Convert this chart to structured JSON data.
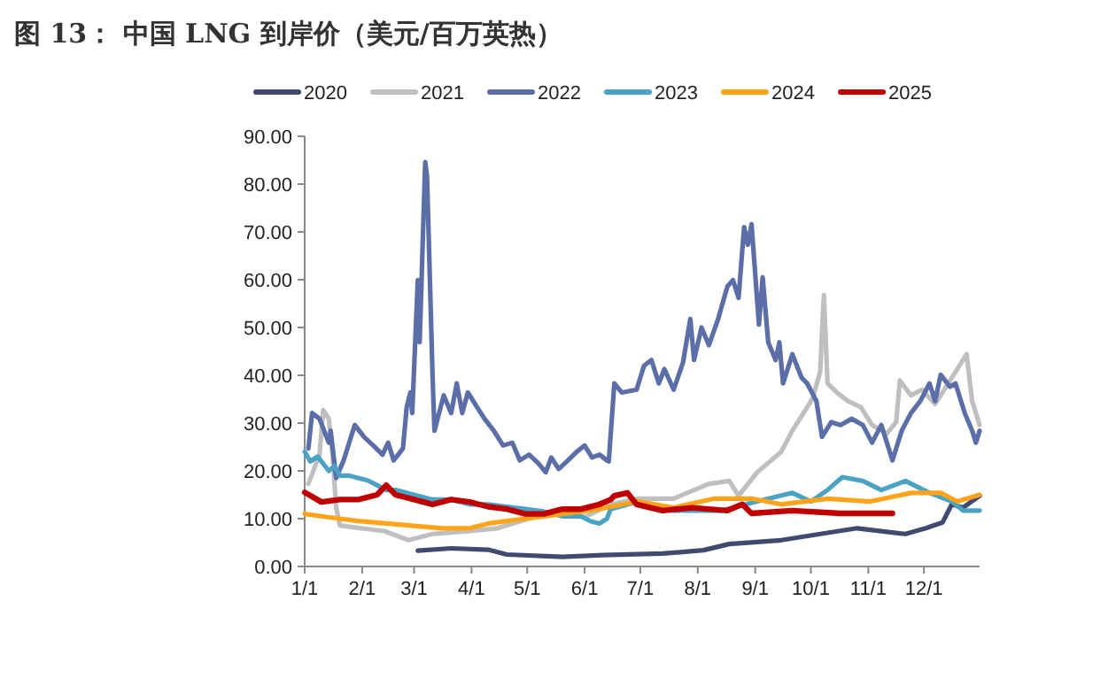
{
  "chart_data": {
    "type": "line",
    "title": "图 13： 中国 LNG 到岸价（美元/百万英热）",
    "legend": "top",
    "xlim": [
      "--01-01",
      "--12-31"
    ],
    "xticks": [
      {
        "value": "--01-01",
        "label": "1/1"
      },
      {
        "value": "--02-01",
        "label": "2/1"
      },
      {
        "value": "--03-01",
        "label": "3/1"
      },
      {
        "value": "--04-01",
        "label": "4/1"
      },
      {
        "value": "--05-01",
        "label": "5/1"
      },
      {
        "value": "--06-01",
        "label": "6/1"
      },
      {
        "value": "--07-01",
        "label": "7/1"
      },
      {
        "value": "--08-01",
        "label": "8/1"
      },
      {
        "value": "--09-01",
        "label": "9/1"
      },
      {
        "value": "--10-01",
        "label": "10/1"
      },
      {
        "value": "--11-01",
        "label": "11/1"
      },
      {
        "value": "--12-01",
        "label": "12/1"
      }
    ],
    "ylim": [
      0,
      90
    ],
    "yticks": [
      {
        "value": 0,
        "label": "0.00"
      },
      {
        "value": 10,
        "label": "10.00"
      },
      {
        "value": 20,
        "label": "20.00"
      },
      {
        "value": 30,
        "label": "30.00"
      },
      {
        "value": 40,
        "label": "40.00"
      },
      {
        "value": 50,
        "label": "50.00"
      },
      {
        "value": 60,
        "label": "60.00"
      },
      {
        "value": 70,
        "label": "70.00"
      },
      {
        "value": 80,
        "label": "80.00"
      },
      {
        "value": 90,
        "label": "90.00"
      }
    ],
    "series": [
      {
        "name": "2020",
        "color": "#3f4a70",
        "x": [
          "--03-03",
          "--03-21",
          "--04-10",
          "--04-20",
          "--05-20",
          "--06-11",
          "--07-13",
          "--08-04",
          "--08-18",
          "--09-15",
          "--10-16",
          "--10-26",
          "--11-21",
          "--12-02",
          "--12-11",
          "--12-16",
          "--12-22",
          "--12-31"
        ],
        "values": [
          3.3,
          3.8,
          3.5,
          2.5,
          2,
          2.4,
          2.7,
          3.4,
          4.7,
          5.5,
          7.4,
          8,
          6.8,
          8,
          9.2,
          13,
          12.3,
          14.8
        ]
      },
      {
        "name": "2021",
        "color": "#bfbfbf",
        "x": [
          "--01-03",
          "--01-09",
          "--01-11",
          "--01-14",
          "--01-16",
          "--01-18",
          "--01-20",
          "--01-31",
          "--02-13",
          "--02-26",
          "--03-11",
          "--03-30",
          "--04-15",
          "--05-01",
          "--05-13",
          "--06-02",
          "--06-14",
          "--06-30",
          "--07-19",
          "--08-07",
          "--08-18",
          "--08-23",
          "--09-02",
          "--09-15",
          "--09-21",
          "--09-29",
          "--10-02",
          "--10-06",
          "--10-08",
          "--10-10",
          "--10-15",
          "--10-21",
          "--10-28",
          "--11-03",
          "--11-11",
          "--11-16",
          "--11-18",
          "--11-24",
          "--11-30",
          "--12-07",
          "--12-11",
          "--12-19",
          "--12-24",
          "--12-27",
          "--12-31"
        ],
        "values": [
          17.3,
          23.4,
          32.7,
          30.9,
          23.4,
          12.3,
          8.6,
          8,
          7.4,
          5.5,
          6.8,
          7.4,
          8,
          9.9,
          11.1,
          10.5,
          12.9,
          14.2,
          14.2,
          17.3,
          17.9,
          14.8,
          19.7,
          24,
          28.4,
          33.3,
          35.2,
          40.7,
          56.8,
          38.3,
          36.4,
          34.6,
          33.3,
          29.6,
          27.8,
          30.2,
          38.9,
          35.8,
          37,
          34,
          36.4,
          41.3,
          44.4,
          34.6,
          29.6
        ]
      },
      {
        "name": "2022",
        "color": "#5b6ea8",
        "x": [
          "--01-03",
          "--01-05",
          "--01-09",
          "--01-14",
          "--01-15",
          "--01-18",
          "--01-22",
          "--01-28",
          "--02-02",
          "--02-07",
          "--02-12",
          "--02-15",
          "--02-18",
          "--02-23",
          "--02-25",
          "--02-27",
          "--02-28",
          "--03-03",
          "--03-04",
          "--03-07",
          "--03-08",
          "--03-11",
          "--03-12",
          "--03-17",
          "--03-21",
          "--03-24",
          "--03-27",
          "--03-30",
          "--04-04",
          "--04-08",
          "--04-13",
          "--04-18",
          "--04-23",
          "--04-27",
          "--05-02",
          "--05-07",
          "--05-11",
          "--05-14",
          "--05-18",
          "--05-23",
          "--05-28",
          "--06-01",
          "--06-05",
          "--06-09",
          "--06-13",
          "--06-14",
          "--06-17",
          "--06-21",
          "--06-29",
          "--07-03",
          "--07-07",
          "--07-11",
          "--07-14",
          "--07-19",
          "--07-24",
          "--07-28",
          "--07-30",
          "--08-03",
          "--08-07",
          "--08-12",
          "--08-17",
          "--08-20",
          "--08-23",
          "--08-26",
          "--08-28",
          "--08-30",
          "--09-03",
          "--09-05",
          "--09-08",
          "--09-12",
          "--09-14",
          "--09-16",
          "--09-21",
          "--09-26",
          "--09-29",
          "--10-04",
          "--10-07",
          "--10-12",
          "--10-17",
          "--10-23",
          "--10-29",
          "--11-03",
          "--11-08",
          "--11-14",
          "--11-19",
          "--11-24",
          "--11-29",
          "--12-04",
          "--12-07",
          "--12-10",
          "--12-15",
          "--12-18",
          "--12-23",
          "--12-27",
          "--12-29",
          "--12-31"
        ],
        "values": [
          24.7,
          32.1,
          30.9,
          25.9,
          28.4,
          18.5,
          22.2,
          29.6,
          27.1,
          25.3,
          23.4,
          25.9,
          22.2,
          24.7,
          33.3,
          36.4,
          32.1,
          59.9,
          46.9,
          84.6,
          81.5,
          39.5,
          28.4,
          35.8,
          32.1,
          38.3,
          32.1,
          36.4,
          33.3,
          30.9,
          28.4,
          25.3,
          25.9,
          22.2,
          23.4,
          21.6,
          19.7,
          22.8,
          20.4,
          22.2,
          24.1,
          25.3,
          22.8,
          23.4,
          22.2,
          22,
          38.3,
          36.4,
          37,
          42,
          43.2,
          38.3,
          41.3,
          37,
          42.6,
          51.8,
          43.2,
          50,
          46.3,
          51.8,
          58.6,
          59.9,
          56.2,
          71,
          67.3,
          71.6,
          50.6,
          60.5,
          46.9,
          43.2,
          46.9,
          38.3,
          44.4,
          39.5,
          38.3,
          34.6,
          27.1,
          30.2,
          29.6,
          30.9,
          29.6,
          25.9,
          29.6,
          22.2,
          28.4,
          32.1,
          34.6,
          38.3,
          34.6,
          40.1,
          37.6,
          38.3,
          32.1,
          28.4,
          25.9,
          28.4
        ]
      },
      {
        "name": "2023",
        "color": "#4aa3c4",
        "x": [
          "--01-01",
          "--01-04",
          "--01-08",
          "--01-14",
          "--01-17",
          "--01-20",
          "--01-25",
          "--02-04",
          "--02-14",
          "--02-19",
          "--03-01",
          "--03-11",
          "--03-21",
          "--03-31",
          "--04-10",
          "--04-20",
          "--04-30",
          "--05-10",
          "--05-20",
          "--05-30",
          "--06-04",
          "--06-09",
          "--06-13",
          "--06-15",
          "--06-30",
          "--07-19",
          "--08-14",
          "--09-02",
          "--09-21",
          "--10-01",
          "--10-10",
          "--10-18",
          "--10-29",
          "--11-08",
          "--11-21",
          "--12-04",
          "--12-16",
          "--12-22",
          "--12-31"
        ],
        "values": [
          24,
          22,
          23,
          20,
          21,
          19,
          19,
          18,
          16,
          16,
          15,
          14,
          14,
          13,
          13,
          12.5,
          12,
          11.5,
          10.5,
          10.5,
          9.5,
          9,
          10,
          12,
          13.6,
          11.7,
          11.7,
          13.6,
          15.4,
          13.6,
          16,
          18.7,
          17.9,
          16,
          17.9,
          15.4,
          13.6,
          11.7,
          11.7
        ]
      },
      {
        "name": "2024",
        "color": "#ffa31a",
        "x": [
          "--01-01",
          "--01-10",
          "--01-20",
          "--01-30",
          "--02-14",
          "--03-01",
          "--03-16",
          "--03-31",
          "--04-10",
          "--04-20",
          "--04-30",
          "--05-10",
          "--05-20",
          "--05-30",
          "--06-09",
          "--06-15",
          "--06-30",
          "--07-19",
          "--08-10",
          "--08-30",
          "--09-15",
          "--10-10",
          "--11-02",
          "--11-24",
          "--12-10",
          "--12-19",
          "--12-31"
        ],
        "values": [
          11,
          10.5,
          10,
          9.5,
          9,
          8.5,
          8,
          8,
          9,
          9.5,
          10,
          10.5,
          11,
          11.5,
          12,
          12.5,
          13.6,
          12.3,
          14.2,
          14.2,
          13,
          14.2,
          13.6,
          15.4,
          15.4,
          13.6,
          15
        ]
      },
      {
        "name": "2025",
        "color": "#c00000",
        "x": [
          "--01-01",
          "--01-10",
          "--01-20",
          "--01-30",
          "--02-09",
          "--02-14",
          "--02-19",
          "--03-01",
          "--03-11",
          "--03-21",
          "--03-31",
          "--04-10",
          "--04-20",
          "--04-30",
          "--05-10",
          "--05-20",
          "--05-30",
          "--06-09",
          "--06-15",
          "--06-17",
          "--06-24",
          "--06-29",
          "--07-13",
          "--07-29",
          "--08-17",
          "--08-25",
          "--08-30",
          "--09-21",
          "--10-17",
          "--11-14"
        ],
        "values": [
          15.5,
          13.5,
          14,
          14,
          15,
          17,
          15,
          14,
          13,
          14,
          13.5,
          12.5,
          12,
          11,
          11,
          12,
          12,
          13,
          14,
          14.8,
          15.4,
          13,
          11.7,
          12.3,
          11.7,
          13,
          11.1,
          11.7,
          11.1,
          11.1
        ]
      }
    ]
  }
}
